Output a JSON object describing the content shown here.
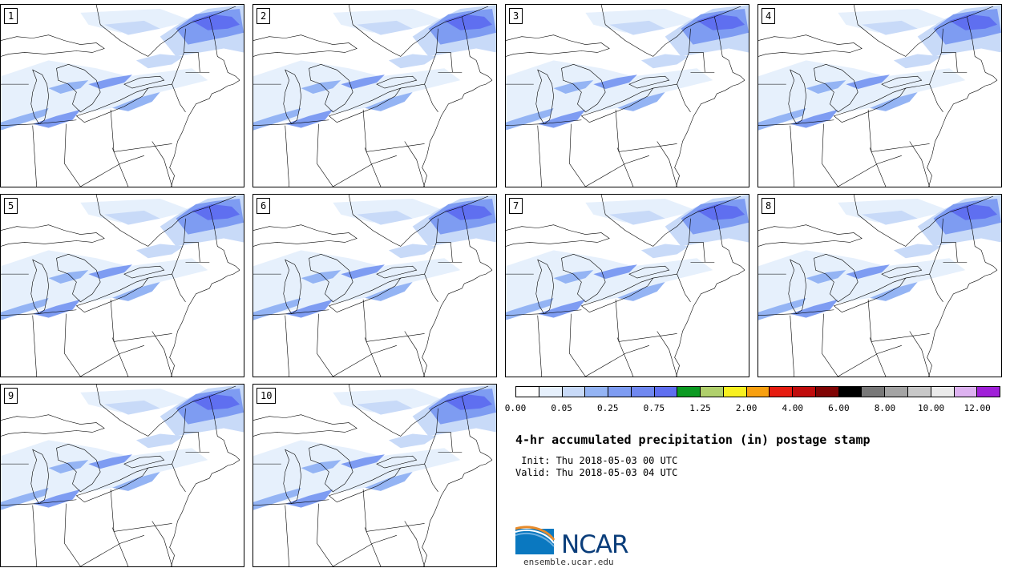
{
  "stamps": [
    {
      "label": "1"
    },
    {
      "label": "2"
    },
    {
      "label": "3"
    },
    {
      "label": "4"
    },
    {
      "label": "5"
    },
    {
      "label": "6"
    },
    {
      "label": "7"
    },
    {
      "label": "8"
    },
    {
      "label": "9"
    },
    {
      "label": "10"
    }
  ],
  "colorbar": {
    "colors": [
      "#ffffff",
      "#e6f0fc",
      "#c8daf8",
      "#94b4f4",
      "#7e9cf2",
      "#7088f0",
      "#5f6ff0",
      "#0c9a22",
      "#b0d06c",
      "#f8f020",
      "#f8a010",
      "#e61c10",
      "#c00c0c",
      "#800404",
      "#000000",
      "#787878",
      "#a4a4a4",
      "#c8c8c8",
      "#ebebeb",
      "#ddb2f0",
      "#a020d8"
    ],
    "tick_labels": [
      "0.00",
      "0.05",
      "0.25",
      "0.75",
      "1.25",
      "2.00",
      "4.00",
      "6.00",
      "8.00",
      "10.00",
      "12.00"
    ]
  },
  "title": "4-hr accumulated precipitation (in) postage stamp",
  "init_line": " Init: Thu 2018-05-03 00 UTC",
  "valid_line": "Valid: Thu 2018-05-03 04 UTC",
  "logo": {
    "wordmark": "NCAR",
    "site": "ensemble.ucar.edu",
    "colors": {
      "blue": "#0a3d7a",
      "arc_orange": "#e88b2a",
      "arc_light": "#6fb0e0"
    }
  }
}
